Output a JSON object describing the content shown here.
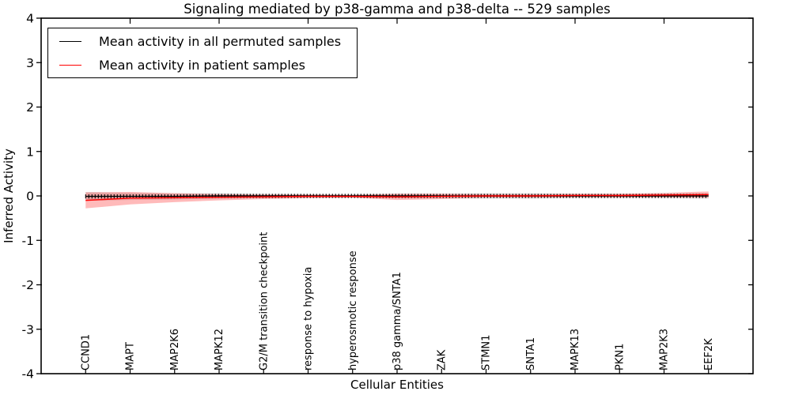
{
  "chart_data": {
    "type": "line",
    "title": "Signaling mediated by p38-gamma and p38-delta -- 529 samples",
    "xlabel": "Cellular Entities",
    "ylabel": "Inferred Activity",
    "ylim": [
      -4,
      4
    ],
    "yticks": [
      4,
      3,
      2,
      1,
      0,
      -1,
      -2,
      -3,
      -4
    ],
    "xlim": [
      0,
      16
    ],
    "top_tick_step": 2,
    "grid": false,
    "legend_position": "upper left",
    "x": [
      1,
      2,
      3,
      4,
      5,
      6,
      7,
      8,
      9,
      10,
      11,
      12,
      13,
      14,
      15
    ],
    "categories": [
      "CCND1",
      "MAPT",
      "MAP2K6",
      "MAPK12",
      "G2/M transition checkpoint",
      "response to hypoxia",
      "hyperosmotic response",
      "p38 gamma/SNTA1",
      "ZAK",
      "STMN1",
      "SNTA1",
      "MAPK13",
      "PKN1",
      "MAP2K3",
      "EEF2K"
    ],
    "series": [
      {
        "name": "Mean activity in all permuted samples",
        "color": "#000000",
        "marker": "tick",
        "values": [
          -0.01,
          -0.01,
          -0.01,
          0.0,
          0.0,
          0.0,
          0.0,
          0.0,
          0.0,
          0.0,
          0.0,
          0.0,
          0.0,
          0.0,
          0.0
        ],
        "band": [
          0.1,
          0.08,
          0.07,
          0.06,
          0.05,
          0.04,
          0.04,
          0.05,
          0.05,
          0.06,
          0.06,
          0.05,
          0.05,
          0.05,
          0.06
        ],
        "band_color": "rgba(0,0,0,0.13)"
      },
      {
        "name": "Mean activity in patient samples",
        "color": "#ff0000",
        "marker": "none",
        "values": [
          -0.1,
          -0.05,
          -0.04,
          -0.03,
          -0.02,
          -0.01,
          -0.01,
          -0.02,
          -0.01,
          0.0,
          0.0,
          0.01,
          0.01,
          0.02,
          0.03
        ],
        "band": [
          0.18,
          0.14,
          0.1,
          0.07,
          0.05,
          0.04,
          0.03,
          0.07,
          0.06,
          0.04,
          0.04,
          0.04,
          0.04,
          0.05,
          0.07
        ],
        "band_color": "rgba(255,0,0,0.27)"
      }
    ]
  }
}
